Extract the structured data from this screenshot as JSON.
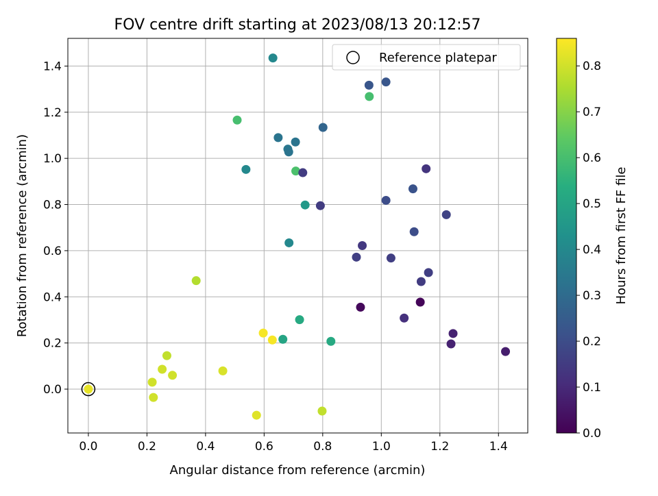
{
  "chart_data": {
    "type": "scatter",
    "title": "FOV centre drift starting at 2023/08/13 20:12:57",
    "xlabel": "Angular distance from reference (arcmin)",
    "ylabel": "Rotation from reference (arcmin)",
    "xlim": [
      -0.07,
      1.5
    ],
    "ylim": [
      -0.19,
      1.52
    ],
    "xticks": [
      0.0,
      0.2,
      0.4,
      0.6,
      0.8,
      1.0,
      1.2,
      1.4
    ],
    "yticks": [
      0.0,
      0.2,
      0.4,
      0.6,
      0.8,
      1.0,
      1.2,
      1.4
    ],
    "grid": true,
    "legend": {
      "placement": "top-right",
      "entries": [
        "Reference platepar"
      ]
    },
    "colorbar": {
      "label": "Hours from first FF file",
      "colormap": "viridis",
      "range": [
        0.0,
        0.86
      ],
      "ticks": [
        0.0,
        0.1,
        0.2,
        0.3,
        0.4,
        0.5,
        0.6,
        0.7,
        0.8
      ]
    },
    "reference": {
      "x": 0.0,
      "y": 0.0
    },
    "points": [
      {
        "x": 0.0,
        "y": 0.0,
        "t": 0.83
      },
      {
        "x": 0.218,
        "y": 0.03,
        "t": 0.8
      },
      {
        "x": 0.222,
        "y": -0.036,
        "t": 0.8
      },
      {
        "x": 0.252,
        "y": 0.086,
        "t": 0.8
      },
      {
        "x": 0.268,
        "y": 0.145,
        "t": 0.78
      },
      {
        "x": 0.287,
        "y": 0.06,
        "t": 0.8
      },
      {
        "x": 0.368,
        "y": 0.47,
        "t": 0.76
      },
      {
        "x": 0.459,
        "y": 0.079,
        "t": 0.81
      },
      {
        "x": 0.574,
        "y": -0.113,
        "t": 0.82
      },
      {
        "x": 0.597,
        "y": 0.243,
        "t": 0.85
      },
      {
        "x": 0.628,
        "y": 0.213,
        "t": 0.85
      },
      {
        "x": 0.798,
        "y": -0.095,
        "t": 0.78
      },
      {
        "x": 0.508,
        "y": 1.166,
        "t": 0.6
      },
      {
        "x": 0.708,
        "y": 0.945,
        "t": 0.61
      },
      {
        "x": 0.959,
        "y": 1.268,
        "t": 0.6
      },
      {
        "x": 0.664,
        "y": 0.216,
        "t": 0.5
      },
      {
        "x": 0.721,
        "y": 0.301,
        "t": 0.52
      },
      {
        "x": 0.828,
        "y": 0.207,
        "t": 0.52
      },
      {
        "x": 0.74,
        "y": 0.798,
        "t": 0.46
      },
      {
        "x": 0.538,
        "y": 0.952,
        "t": 0.4
      },
      {
        "x": 0.63,
        "y": 1.435,
        "t": 0.4
      },
      {
        "x": 0.685,
        "y": 0.634,
        "t": 0.4
      },
      {
        "x": 0.648,
        "y": 1.09,
        "t": 0.33
      },
      {
        "x": 0.681,
        "y": 1.04,
        "t": 0.34
      },
      {
        "x": 0.684,
        "y": 1.028,
        "t": 0.33
      },
      {
        "x": 0.707,
        "y": 1.071,
        "t": 0.33
      },
      {
        "x": 0.801,
        "y": 1.134,
        "t": 0.28
      },
      {
        "x": 0.958,
        "y": 1.317,
        "t": 0.23
      },
      {
        "x": 1.016,
        "y": 1.331,
        "t": 0.23
      },
      {
        "x": 1.016,
        "y": 0.818,
        "t": 0.2
      },
      {
        "x": 1.108,
        "y": 0.868,
        "t": 0.22
      },
      {
        "x": 1.112,
        "y": 0.682,
        "t": 0.2
      },
      {
        "x": 0.732,
        "y": 0.938,
        "t": 0.15
      },
      {
        "x": 0.792,
        "y": 0.795,
        "t": 0.15
      },
      {
        "x": 0.915,
        "y": 0.572,
        "t": 0.16
      },
      {
        "x": 0.935,
        "y": 0.622,
        "t": 0.14
      },
      {
        "x": 1.033,
        "y": 0.568,
        "t": 0.16
      },
      {
        "x": 1.078,
        "y": 0.308,
        "t": 0.12
      },
      {
        "x": 1.136,
        "y": 0.466,
        "t": 0.15
      },
      {
        "x": 1.153,
        "y": 0.955,
        "t": 0.13
      },
      {
        "x": 1.161,
        "y": 0.505,
        "t": 0.16
      },
      {
        "x": 1.222,
        "y": 0.756,
        "t": 0.17
      },
      {
        "x": 0.929,
        "y": 0.355,
        "t": 0.02
      },
      {
        "x": 1.133,
        "y": 0.377,
        "t": 0.01
      },
      {
        "x": 1.238,
        "y": 0.196,
        "t": 0.08
      },
      {
        "x": 1.245,
        "y": 0.241,
        "t": 0.08
      },
      {
        "x": 1.424,
        "y": 0.163,
        "t": 0.07
      }
    ]
  }
}
